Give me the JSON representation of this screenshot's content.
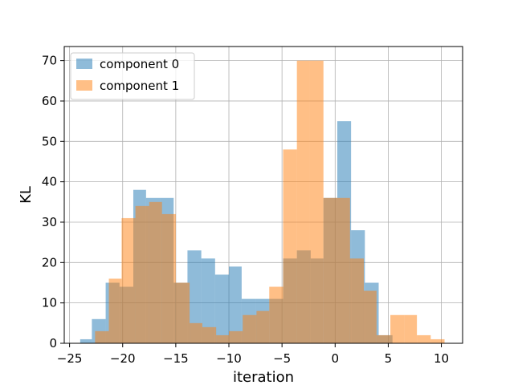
{
  "chart_data": {
    "type": "bar",
    "xlabel": "iteration",
    "ylabel": "KL",
    "xlim": [
      -25.5,
      12
    ],
    "ylim": [
      0,
      73.5
    ],
    "xticks": [
      -25,
      -20,
      -15,
      -10,
      -5,
      0,
      5,
      10
    ],
    "xtick_labels": [
      "−25",
      "−20",
      "−15",
      "−10",
      "−5",
      "0",
      "5",
      "10"
    ],
    "yticks": [
      0,
      10,
      20,
      30,
      40,
      50,
      60,
      70
    ],
    "ytick_labels": [
      "0",
      "10",
      "20",
      "30",
      "40",
      "50",
      "60",
      "70"
    ],
    "grid": true,
    "legend_position": "top-left",
    "series": [
      {
        "name": "component 0",
        "color": "#1f77b4",
        "alpha": 0.5,
        "bin_edges": [
          -24,
          -22.9,
          -21.6,
          -20.3,
          -19,
          -17.8,
          -16.5,
          -15.2,
          -13.9,
          -12.6,
          -11.3,
          -10,
          -8.8,
          -7.5,
          -6.2,
          -4.9,
          -3.6,
          -2.3,
          -1.1,
          0.2,
          1.5,
          2.8,
          4.1,
          5.4
        ],
        "counts": [
          1,
          6,
          15,
          14,
          38,
          36,
          36,
          15,
          23,
          21,
          17,
          19,
          11,
          11,
          11,
          21,
          23,
          21,
          36,
          55,
          28,
          15,
          2
        ]
      },
      {
        "name": "component 1",
        "color": "#ff7f0e",
        "alpha": 0.5,
        "bin_edges": [
          -22.6,
          -21.3,
          -20.1,
          -18.8,
          -17.5,
          -16.3,
          -15,
          -13.7,
          -12.5,
          -11.2,
          -10,
          -8.7,
          -7.4,
          -6.2,
          -4.9,
          -3.6,
          -2.4,
          -1.1,
          0.2,
          1.4,
          2.7,
          3.9,
          5.2,
          6.5,
          7.7,
          9,
          10.3
        ],
        "counts": [
          3,
          16,
          31,
          34,
          35,
          32,
          15,
          5,
          4,
          2,
          3,
          7,
          8,
          14,
          48,
          70,
          70,
          36,
          36,
          21,
          13,
          2,
          7,
          7,
          2,
          1
        ]
      }
    ]
  }
}
